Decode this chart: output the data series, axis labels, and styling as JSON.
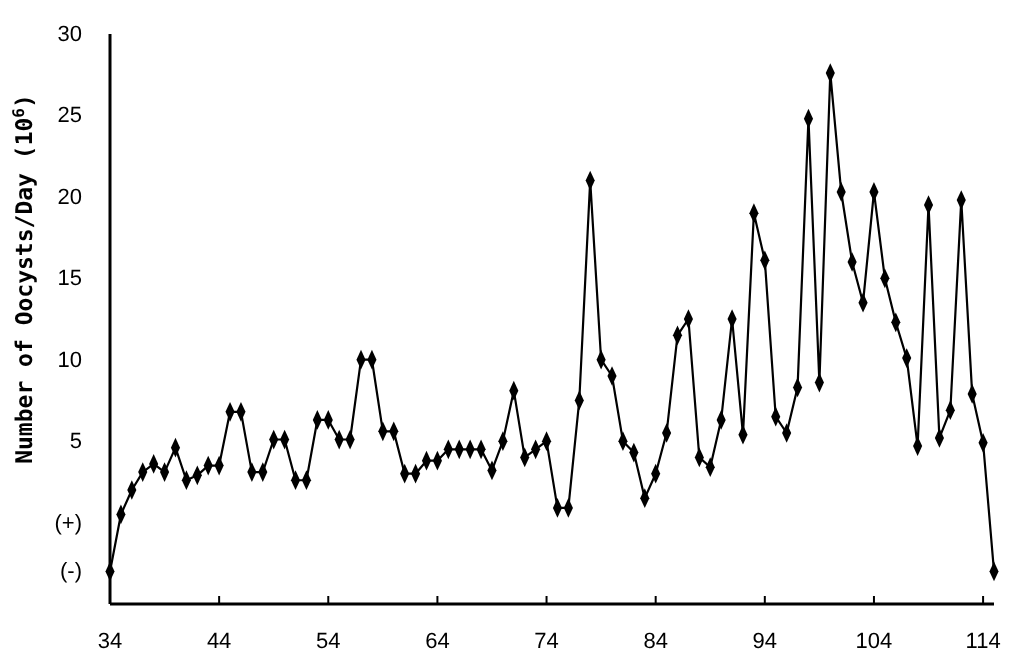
{
  "chart_data": {
    "type": "line",
    "ylabel": "Number of Oocysts/Day (10$^{6}$)",
    "x": [
      34,
      35,
      36,
      37,
      38,
      39,
      40,
      41,
      42,
      43,
      44,
      45,
      46,
      47,
      48,
      49,
      50,
      51,
      52,
      53,
      54,
      55,
      56,
      57,
      58,
      59,
      60,
      61,
      62,
      63,
      64,
      65,
      66,
      67,
      68,
      69,
      70,
      71,
      72,
      73,
      74,
      75,
      76,
      77,
      78,
      79,
      80,
      81,
      82,
      83,
      84,
      85,
      86,
      87,
      88,
      89,
      90,
      91,
      92,
      93,
      94,
      95,
      96,
      97,
      98,
      99,
      100,
      101,
      102,
      103,
      104,
      105,
      106,
      107,
      108,
      109,
      110,
      111,
      112,
      113,
      114,
      115
    ],
    "series": [
      {
        "color": "#000000",
        "values": [
          -3,
          0.5,
          2.0,
          3.1,
          3.6,
          3.1,
          4.6,
          2.6,
          2.9,
          3.5,
          3.5,
          6.8,
          6.8,
          3.1,
          3.1,
          5.1,
          5.1,
          2.6,
          2.6,
          6.3,
          6.3,
          5.1,
          5.1,
          10.0,
          10.0,
          5.6,
          5.6,
          3.0,
          3.0,
          3.8,
          3.8,
          4.5,
          4.5,
          4.5,
          4.5,
          3.2,
          5.0,
          8.1,
          4.0,
          4.5,
          5.0,
          0.9,
          0.9,
          7.5,
          21,
          10.0,
          9.0,
          5.0,
          4.3,
          1.5,
          3.0,
          5.5,
          11.5,
          12.5,
          4.0,
          3.4,
          6.3,
          12.5,
          5.4,
          19.0,
          16.1,
          6.5,
          5.5,
          8.3,
          24.8,
          8.6,
          27.6,
          20.3,
          16.0,
          13.5,
          20.3,
          15.0,
          12.3,
          10.1,
          4.7,
          19.5,
          5.2,
          6.9,
          19.8,
          7.9,
          4.9,
          -3
        ]
      }
    ],
    "xlim": [
      34,
      115
    ],
    "xticks": [
      34,
      44,
      54,
      64,
      74,
      84,
      94,
      104,
      114
    ],
    "ylim": [
      -5,
      30
    ],
    "yticks": [
      {
        "value": -3,
        "label": "(-)"
      },
      {
        "value": 0,
        "label": "(+)"
      },
      5,
      10,
      15,
      20,
      25,
      30
    ],
    "grid": false,
    "marker": "diamond",
    "line_style": "solid"
  }
}
